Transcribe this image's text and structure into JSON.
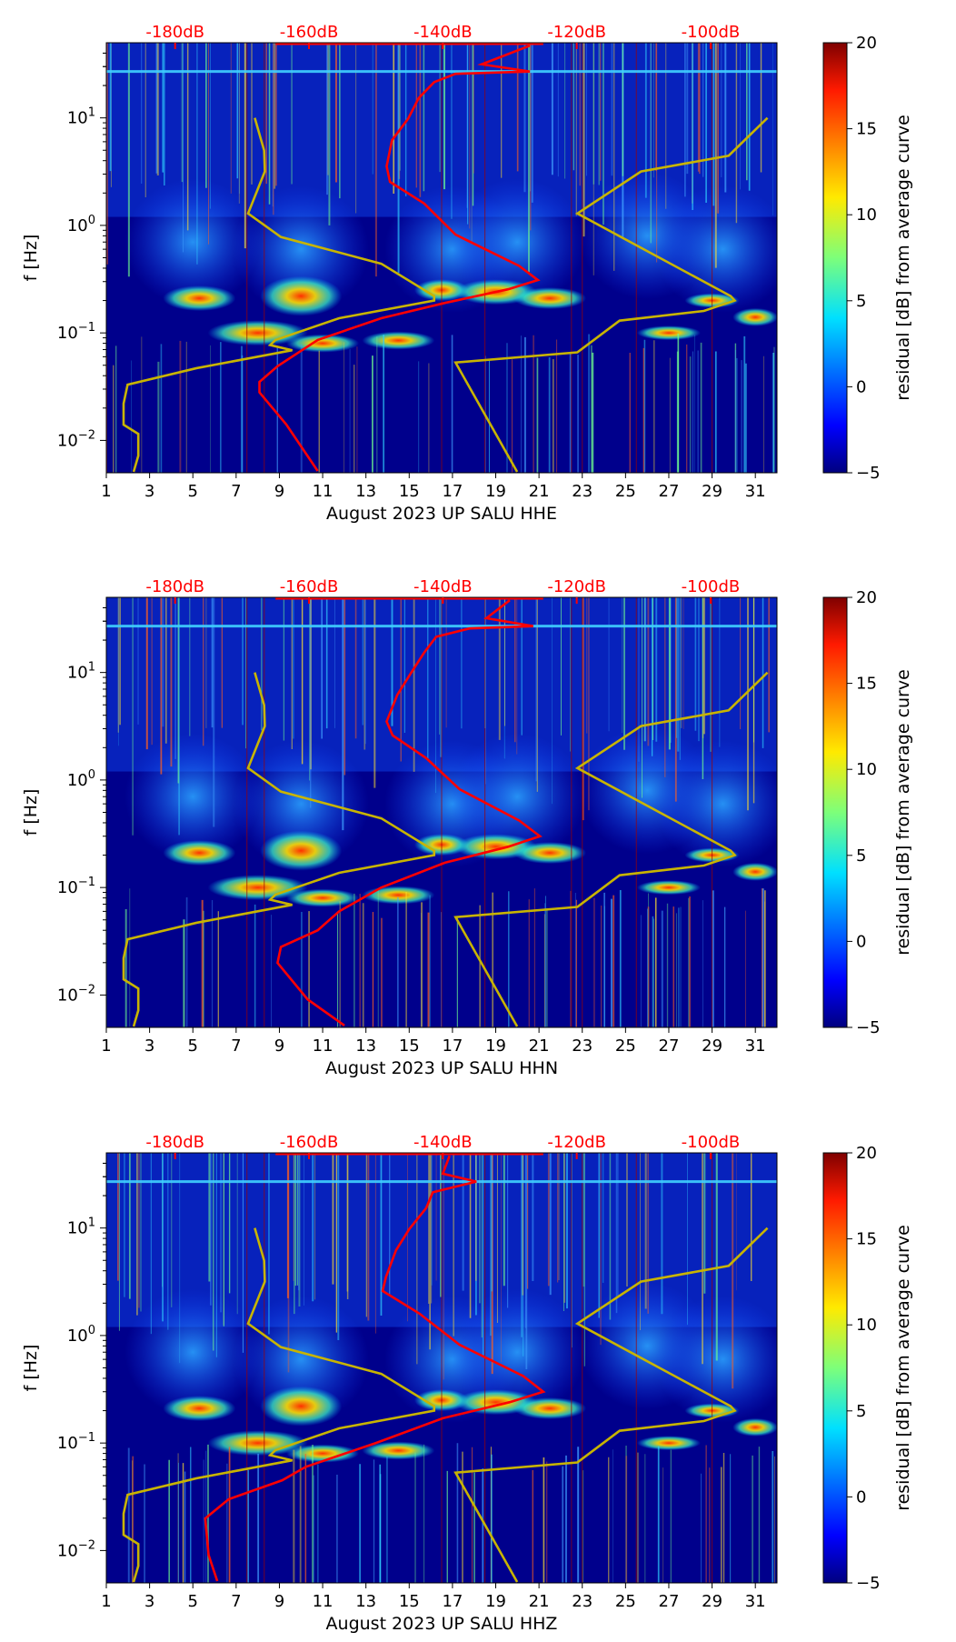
{
  "chart_data": [
    {
      "type": "heatmap",
      "title": "",
      "xlabel": "August 2023 UP SALU  HHE",
      "ylabel": "f [Hz]",
      "xlim": [
        1,
        32
      ],
      "ylim": [
        0.005,
        50
      ],
      "yscale": "log",
      "x_ticks": [
        1,
        3,
        5,
        7,
        9,
        11,
        13,
        15,
        17,
        19,
        21,
        23,
        25,
        27,
        29,
        31
      ],
      "y_ticks": [
        "10^-2",
        "10^-1",
        "10^0",
        "10^1"
      ],
      "top_axis_ticks": [
        "-180dB",
        "-160dB",
        "-140dB",
        "-120dB",
        "-100dB"
      ],
      "colorbar": {
        "label": "residual [dB] from average curve",
        "range": [
          -5,
          20
        ],
        "ticks": [
          -5,
          0,
          5,
          10,
          15,
          20
        ],
        "colormap": "jet"
      },
      "red_curve_psd_db_vs_hz": [
        [
          -158.7,
          0.0052
        ],
        [
          -163.4,
          0.0141
        ],
        [
          -167.4,
          0.028
        ],
        [
          -167.4,
          0.035
        ],
        [
          -164.7,
          0.049
        ],
        [
          -158.7,
          0.086
        ],
        [
          -149.2,
          0.137
        ],
        [
          -139.7,
          0.19
        ],
        [
          -130.2,
          0.255
        ],
        [
          -125.8,
          0.31
        ],
        [
          -128.6,
          0.42
        ],
        [
          -138.1,
          0.82
        ],
        [
          -142.8,
          1.6
        ],
        [
          -147.9,
          2.54
        ],
        [
          -148.4,
          3.55
        ],
        [
          -147.6,
          6.2
        ],
        [
          -145.2,
          9.8
        ],
        [
          -143.6,
          15.3
        ],
        [
          -141.3,
          21.5
        ],
        [
          -138.1,
          25.7
        ],
        [
          -127.0,
          27
        ],
        [
          -134.2,
          31.5
        ],
        [
          -127.0,
          47
        ]
      ]
    },
    {
      "type": "heatmap",
      "title": "",
      "xlabel": "August 2023 UP SALU  HHN",
      "ylabel": "f [Hz]",
      "xlim": [
        1,
        32
      ],
      "ylim": [
        0.005,
        50
      ],
      "yscale": "log",
      "x_ticks": [
        1,
        3,
        5,
        7,
        9,
        11,
        13,
        15,
        17,
        19,
        21,
        23,
        25,
        27,
        29,
        31
      ],
      "y_ticks": [
        "10^-2",
        "10^-1",
        "10^0",
        "10^1"
      ],
      "top_axis_ticks": [
        "-180dB",
        "-160dB",
        "-140dB",
        "-120dB",
        "-100dB"
      ],
      "colorbar": {
        "label": "residual [dB] from average curve",
        "range": [
          -5,
          20
        ],
        "ticks": [
          -5,
          0,
          5,
          10,
          15,
          20
        ],
        "colormap": "jet"
      },
      "red_curve_psd_db_vs_hz": [
        [
          -154.7,
          0.0052
        ],
        [
          -160.2,
          0.0091
        ],
        [
          -164.7,
          0.0199
        ],
        [
          -164.2,
          0.028
        ],
        [
          -158.7,
          0.04
        ],
        [
          -155.5,
          0.06
        ],
        [
          -149.2,
          0.1
        ],
        [
          -139.7,
          0.17
        ],
        [
          -130.2,
          0.24
        ],
        [
          -125.5,
          0.3
        ],
        [
          -128.6,
          0.42
        ],
        [
          -137.5,
          0.82
        ],
        [
          -142.5,
          1.6
        ],
        [
          -147.5,
          2.6
        ],
        [
          -148.4,
          3.5
        ],
        [
          -146.8,
          6.2
        ],
        [
          -144.8,
          9.8
        ],
        [
          -142.8,
          15.3
        ],
        [
          -141.0,
          21.5
        ],
        [
          -136.0,
          25.7
        ],
        [
          -126.5,
          27
        ],
        [
          -133.5,
          32
        ],
        [
          -130.0,
          47
        ]
      ]
    },
    {
      "type": "heatmap",
      "title": "",
      "xlabel": "August 2023 UP SALU  HHZ",
      "ylabel": "f [Hz]",
      "xlim": [
        1,
        32
      ],
      "ylim": [
        0.005,
        50
      ],
      "yscale": "log",
      "x_ticks": [
        1,
        3,
        5,
        7,
        9,
        11,
        13,
        15,
        17,
        19,
        21,
        23,
        25,
        27,
        29,
        31
      ],
      "y_ticks": [
        "10^-2",
        "10^-1",
        "10^0",
        "10^1"
      ],
      "top_axis_ticks": [
        "-180dB",
        "-160dB",
        "-140dB",
        "-120dB",
        "-100dB"
      ],
      "colorbar": {
        "label": "residual [dB] from average curve",
        "range": [
          -5,
          20
        ],
        "ticks": [
          -5,
          0,
          5,
          10,
          15,
          20
        ],
        "colormap": "jet"
      },
      "red_curve_psd_db_vs_hz": [
        [
          -173.7,
          0.0052
        ],
        [
          -175.0,
          0.0091
        ],
        [
          -175.5,
          0.0199
        ],
        [
          -172.0,
          0.03
        ],
        [
          -164.0,
          0.045
        ],
        [
          -160.5,
          0.06
        ],
        [
          -150.0,
          0.1
        ],
        [
          -140.0,
          0.17
        ],
        [
          -130.0,
          0.24
        ],
        [
          -125.0,
          0.3
        ],
        [
          -128.0,
          0.42
        ],
        [
          -137.5,
          0.82
        ],
        [
          -143.5,
          1.6
        ],
        [
          -149.0,
          2.6
        ],
        [
          -148.5,
          3.5
        ],
        [
          -147.0,
          6.2
        ],
        [
          -145.0,
          9.8
        ],
        [
          -142.5,
          15.3
        ],
        [
          -141.5,
          21.5
        ],
        [
          -135.0,
          27
        ],
        [
          -140.0,
          32
        ],
        [
          -139.0,
          47
        ]
      ]
    }
  ],
  "noise_models": {
    "low_model_db_vs_hz": [
      [
        -168.1,
        10
      ],
      [
        -166.7,
        4.97
      ],
      [
        -166.6,
        3.17
      ],
      [
        -169.1,
        1.29
      ],
      [
        -164.2,
        0.78
      ],
      [
        -149.2,
        0.44
      ],
      [
        -141.3,
        0.22
      ],
      [
        -141.3,
        0.2
      ],
      [
        -155.5,
        0.137
      ],
      [
        -165.0,
        0.086
      ],
      [
        -165.8,
        0.077
      ],
      [
        -162.5,
        0.069
      ],
      [
        -176.8,
        0.047
      ],
      [
        -187.1,
        0.033
      ],
      [
        -187.7,
        0.022
      ],
      [
        -187.7,
        0.014
      ],
      [
        -185.5,
        0.0115
      ],
      [
        -185.5,
        0.0072
      ],
      [
        -186.2,
        0.0051
      ]
    ],
    "high_model_db_vs_hz": [
      [
        -91.5,
        10
      ],
      [
        -97.3,
        4.45
      ],
      [
        -110.4,
        3.17
      ],
      [
        -119.9,
        1.29
      ],
      [
        -97.0,
        0.22
      ],
      [
        -96.4,
        0.2
      ],
      [
        -101.0,
        0.16
      ],
      [
        -113.6,
        0.13
      ],
      [
        -119.9,
        0.066
      ],
      [
        -138.1,
        0.053
      ],
      [
        -128.9,
        0.0051
      ]
    ],
    "color": "#c8b400"
  },
  "colors": {
    "red_curve": "#ff0000",
    "background": "#00008c"
  }
}
